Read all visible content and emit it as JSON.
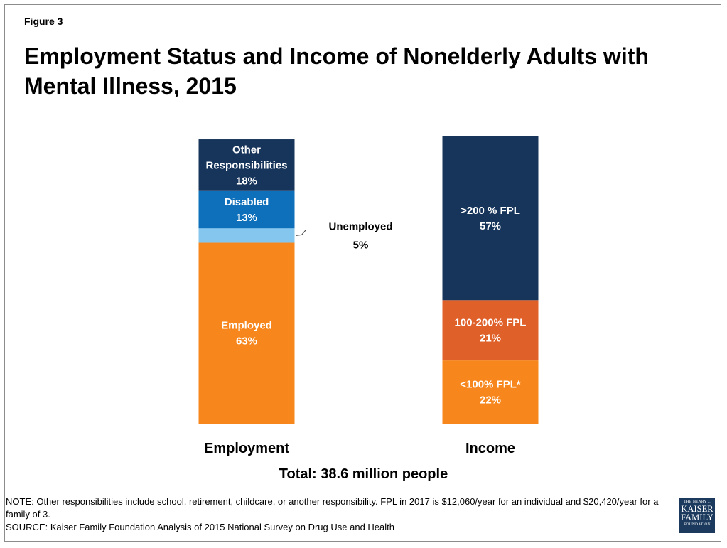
{
  "figure_label": "Figure 3",
  "title": "Employment Status and Income of Nonelderly Adults with Mental Illness, 2015",
  "total_label": "Total: 38.6 million people",
  "note_line1": "NOTE: Other responsibilities include school, retirement, childcare, or another responsibility. FPL in 2017 is $12,060/year for an individual and $20,420/year for a family of 3.",
  "note_line2": "SOURCE: Kaiser Family Foundation Analysis of 2015 National Survey on Drug Use and Health",
  "logo": {
    "line1": "THE HENRY J.",
    "line2": "KAISER",
    "line3": "FAMILY",
    "line4": "FOUNDATION"
  },
  "chart_data": {
    "type": "bar",
    "stacked": true,
    "categories": [
      "Employment",
      "Income"
    ],
    "ylim": [
      0,
      100
    ],
    "bars": [
      {
        "category": "Employment",
        "segments": [
          {
            "label": "Employed",
            "value": 63,
            "value_label": "63%",
            "color": "#f7871d",
            "label_position": "inside"
          },
          {
            "label": "Unemployed",
            "value": 5,
            "value_label": "5%",
            "color": "#85c6ee",
            "label_position": "outside"
          },
          {
            "label": "Disabled",
            "value": 13,
            "value_label": "13%",
            "color": "#0e6fba",
            "label_position": "inside"
          },
          {
            "label": "Other Responsibilities",
            "value": 18,
            "value_label": "18%",
            "color": "#17355b",
            "label_position": "inside"
          }
        ]
      },
      {
        "category": "Income",
        "segments": [
          {
            "label": "<100% FPL*",
            "value": 22,
            "value_label": "22%",
            "color": "#f7871d",
            "label_position": "inside"
          },
          {
            "label": "100-200% FPL",
            "value": 21,
            "value_label": "21%",
            "color": "#e0602a",
            "label_position": "inside"
          },
          {
            "label": ">200 % FPL",
            "value": 57,
            "value_label": "57%",
            "color": "#17355b",
            "label_position": "inside"
          }
        ]
      }
    ]
  }
}
